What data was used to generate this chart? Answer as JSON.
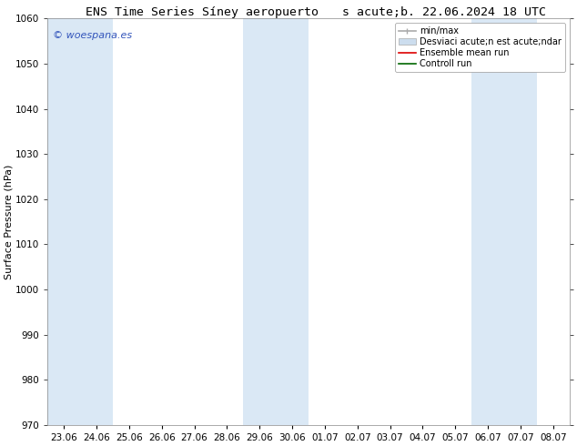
{
  "title_left": "ENS Time Series Síney aeropuerto",
  "title_right": "s acute;b. 22.06.2024 18 UTC",
  "ylabel": "Surface Pressure (hPa)",
  "ylim": [
    970,
    1060
  ],
  "yticks": [
    970,
    980,
    990,
    1000,
    1010,
    1020,
    1030,
    1040,
    1050,
    1060
  ],
  "xtick_labels": [
    "23.06",
    "24.06",
    "25.06",
    "26.06",
    "27.06",
    "28.06",
    "29.06",
    "30.06",
    "01.07",
    "02.07",
    "03.07",
    "04.07",
    "05.07",
    "06.07",
    "07.07",
    "08.07"
  ],
  "shaded_color": "#dae8f5",
  "watermark": "© woespana.es",
  "watermark_color": "#3355bb",
  "legend_entry_0": "min/max",
  "legend_entry_1": "Desviaci acute;n est acute;ndar",
  "legend_entry_2": "Ensemble mean run",
  "legend_entry_3": "Controll run",
  "legend_color_0": "#aaaaaa",
  "legend_color_1": "#ccddee",
  "legend_color_2": "#dd0000",
  "legend_color_3": "#006600",
  "bg_color": "#ffffff",
  "title_fontsize": 9.5,
  "ylabel_fontsize": 8,
  "tick_fontsize": 7.5,
  "legend_fontsize": 7,
  "watermark_fontsize": 8
}
